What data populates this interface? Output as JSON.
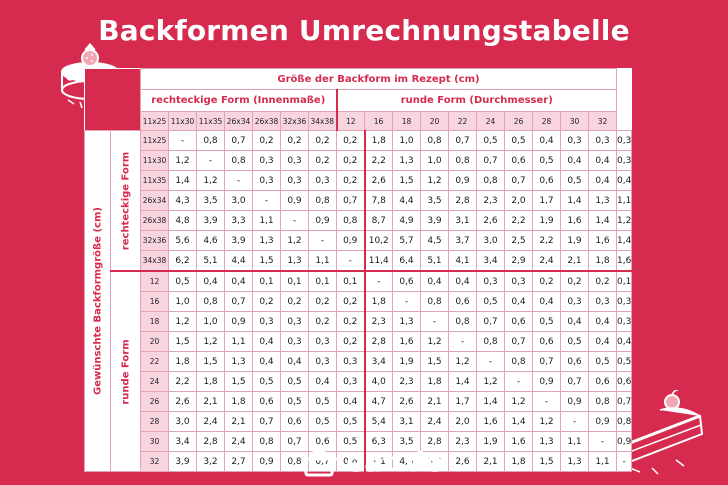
{
  "title": "Backformen Umrechnungstabelle",
  "brand": "eat.de",
  "icons": [
    "cake-icon",
    "pie-slice-icon",
    "pot-icon"
  ],
  "colors": {
    "background": "#d62a4f",
    "header_cell": "#f8d5de",
    "grid": "#e2a3b3"
  },
  "table": {
    "top_header": "Größe der Backform im Rezept (cm)",
    "rect_header": "rechteckige Form (Innenmaße)",
    "round_header": "runde Form (Durchmesser)",
    "side_label": "Gewünschte Backformgröße (cm)",
    "rect_row_label": "rechteckige Form",
    "round_row_label": "runde Form",
    "columns": [
      "11x25",
      "11x30",
      "11x35",
      "26x34",
      "26x38",
      "32x36",
      "34x38",
      "12",
      "16",
      "18",
      "20",
      "22",
      "24",
      "26",
      "28",
      "30",
      "32"
    ],
    "rows": [
      {
        "label": "11x25",
        "values": [
          "-",
          "0,8",
          "0,7",
          "0,2",
          "0,2",
          "0,2",
          "0,2",
          "1,8",
          "1,0",
          "0,8",
          "0,7",
          "0,5",
          "0,5",
          "0,4",
          "0,3",
          "0,3",
          "0,3"
        ]
      },
      {
        "label": "11x30",
        "values": [
          "1,2",
          "-",
          "0,8",
          "0,3",
          "0,3",
          "0,2",
          "0,2",
          "2,2",
          "1,3",
          "1,0",
          "0,8",
          "0,7",
          "0,6",
          "0,5",
          "0,4",
          "0,4",
          "0,3"
        ]
      },
      {
        "label": "11x35",
        "values": [
          "1,4",
          "1,2",
          "-",
          "0,3",
          "0,3",
          "0,3",
          "0,2",
          "2,6",
          "1,5",
          "1,2",
          "0,9",
          "0,8",
          "0,7",
          "0,6",
          "0,5",
          "0,4",
          "0,4"
        ]
      },
      {
        "label": "26x34",
        "values": [
          "4,3",
          "3,5",
          "3,0",
          "-",
          "0,9",
          "0,8",
          "0,7",
          "7,8",
          "4,4",
          "3,5",
          "2,8",
          "2,3",
          "2,0",
          "1,7",
          "1,4",
          "1,3",
          "1,1"
        ]
      },
      {
        "label": "26x38",
        "values": [
          "4,8",
          "3,9",
          "3,3",
          "1,1",
          "-",
          "0,9",
          "0,8",
          "8,7",
          "4,9",
          "3,9",
          "3,1",
          "2,6",
          "2,2",
          "1,9",
          "1,6",
          "1,4",
          "1,2"
        ]
      },
      {
        "label": "32x36",
        "values": [
          "5,6",
          "4,6",
          "3,9",
          "1,3",
          "1,2",
          "-",
          "0,9",
          "10,2",
          "5,7",
          "4,5",
          "3,7",
          "3,0",
          "2,5",
          "2,2",
          "1,9",
          "1,6",
          "1,4"
        ]
      },
      {
        "label": "34x38",
        "values": [
          "6,2",
          "5,1",
          "4,4",
          "1,5",
          "1,3",
          "1,1",
          "-",
          "11,4",
          "6,4",
          "5,1",
          "4,1",
          "3,4",
          "2,9",
          "2,4",
          "2,1",
          "1,8",
          "1,6"
        ]
      },
      {
        "label": "12",
        "values": [
          "0,5",
          "0,4",
          "0,4",
          "0,1",
          "0,1",
          "0,1",
          "0,1",
          "-",
          "0,6",
          "0,4",
          "0,4",
          "0,3",
          "0,3",
          "0,2",
          "0,2",
          "0,2",
          "0,1"
        ]
      },
      {
        "label": "16",
        "values": [
          "1,0",
          "0,8",
          "0,7",
          "0,2",
          "0,2",
          "0,2",
          "0,2",
          "1,8",
          "-",
          "0,8",
          "0,6",
          "0,5",
          "0,4",
          "0,4",
          "0,3",
          "0,3",
          "0,3"
        ]
      },
      {
        "label": "18",
        "values": [
          "1,2",
          "1,0",
          "0,9",
          "0,3",
          "0,3",
          "0,2",
          "0,2",
          "2,3",
          "1,3",
          "-",
          "0,8",
          "0,7",
          "0,6",
          "0,5",
          "0,4",
          "0,4",
          "0,3"
        ]
      },
      {
        "label": "20",
        "values": [
          "1,5",
          "1,2",
          "1,1",
          "0,4",
          "0,3",
          "0,3",
          "0,2",
          "2,8",
          "1,6",
          "1,2",
          "-",
          "0,8",
          "0,7",
          "0,6",
          "0,5",
          "0,4",
          "0,4"
        ]
      },
      {
        "label": "22",
        "values": [
          "1,8",
          "1,5",
          "1,3",
          "0,4",
          "0,4",
          "0,3",
          "0,3",
          "3,4",
          "1,9",
          "1,5",
          "1,2",
          "-",
          "0,8",
          "0,7",
          "0,6",
          "0,5",
          "0,5"
        ]
      },
      {
        "label": "24",
        "values": [
          "2,2",
          "1,8",
          "1,5",
          "0,5",
          "0,5",
          "0,4",
          "0,3",
          "4,0",
          "2,3",
          "1,8",
          "1,4",
          "1,2",
          "-",
          "0,9",
          "0,7",
          "0,6",
          "0,6"
        ]
      },
      {
        "label": "26",
        "values": [
          "2,6",
          "2,1",
          "1,8",
          "0,6",
          "0,5",
          "0,5",
          "0,4",
          "4,7",
          "2,6",
          "2,1",
          "1,7",
          "1,4",
          "1,2",
          "-",
          "0,9",
          "0,8",
          "0,7"
        ]
      },
      {
        "label": "28",
        "values": [
          "3,0",
          "2,4",
          "2,1",
          "0,7",
          "0,6",
          "0,5",
          "0,5",
          "5,4",
          "3,1",
          "2,4",
          "2,0",
          "1,6",
          "1,4",
          "1,2",
          "-",
          "0,9",
          "0,8"
        ]
      },
      {
        "label": "30",
        "values": [
          "3,4",
          "2,8",
          "2,4",
          "0,8",
          "0,7",
          "0,6",
          "0,5",
          "6,3",
          "3,5",
          "2,8",
          "2,3",
          "1,9",
          "1,6",
          "1,3",
          "1,1",
          "-",
          "0,9"
        ]
      },
      {
        "label": "32",
        "values": [
          "3,9",
          "3,2",
          "2,7",
          "0,9",
          "0,8",
          "0,7",
          "0,6",
          "7,1",
          "4,0",
          "3,2",
          "2,6",
          "2,1",
          "1,8",
          "1,5",
          "1,3",
          "1,1",
          "-"
        ]
      }
    ]
  }
}
